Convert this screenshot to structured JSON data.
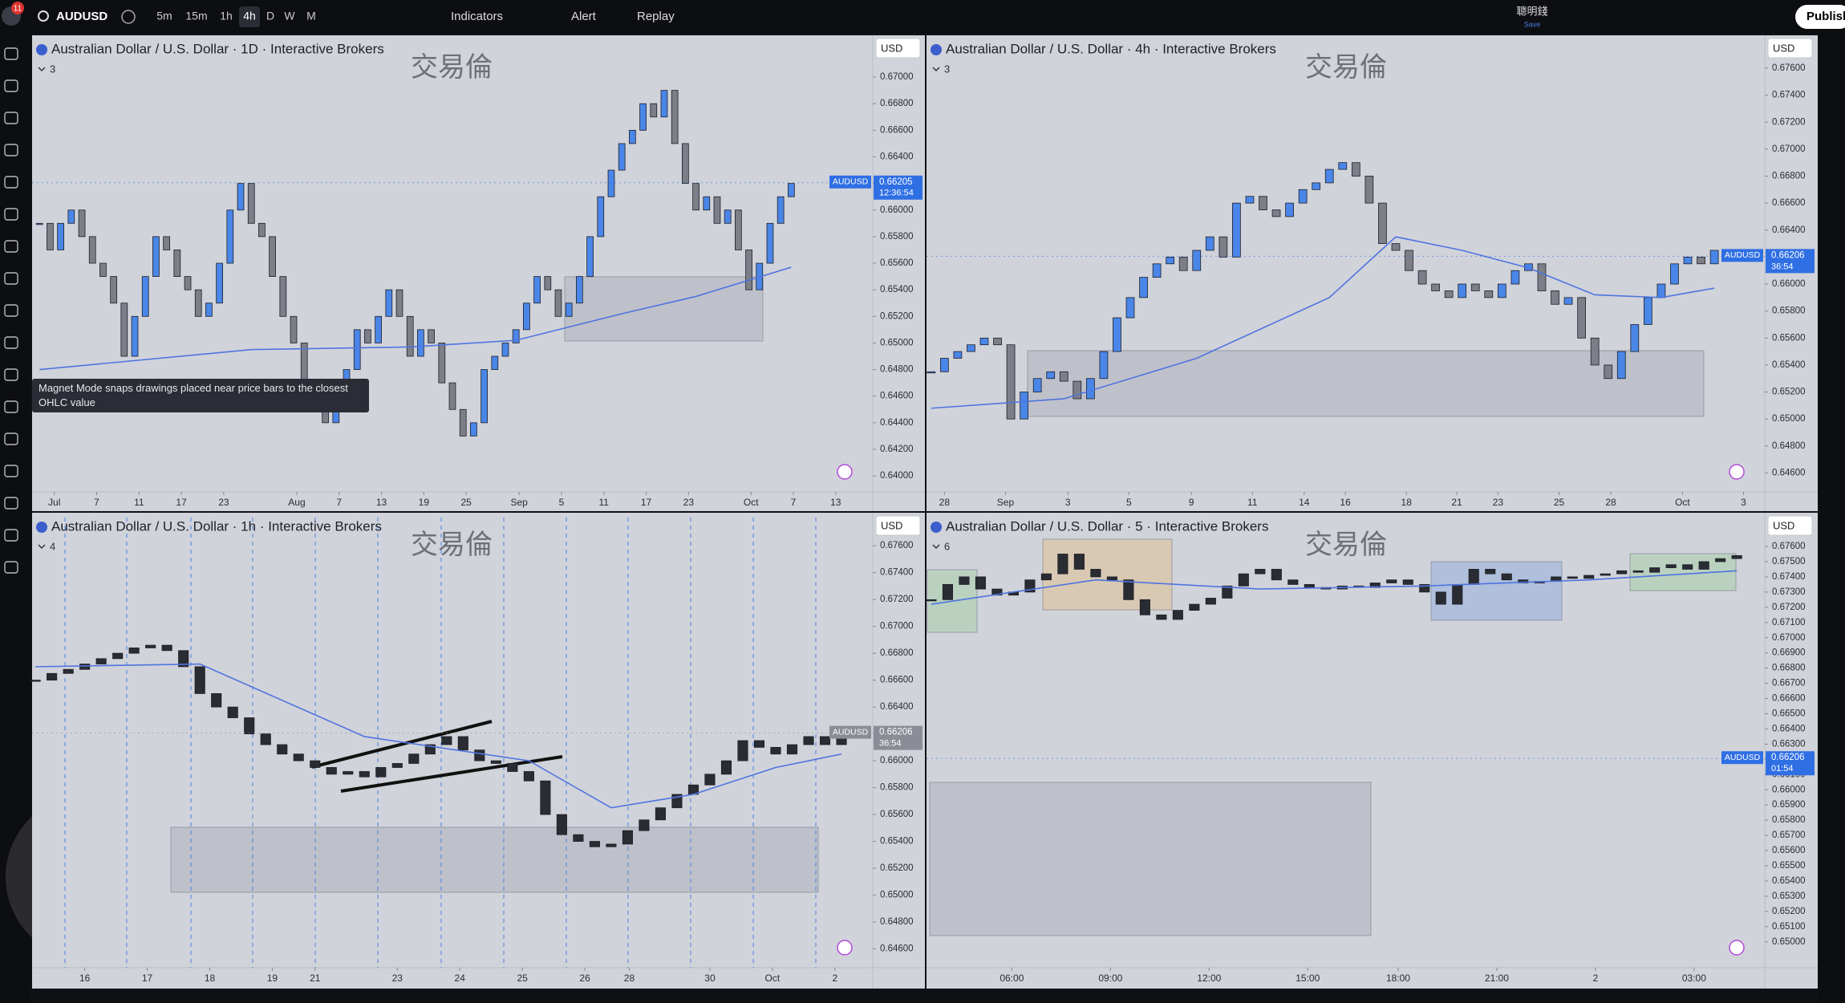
{
  "toolbar": {
    "badge": "11",
    "symbol": "AUDUSD",
    "intervals": [
      "5m",
      "15m",
      "1h",
      "4h",
      "D",
      "W",
      "M"
    ],
    "indicators": "Indicators",
    "alert": "Alert",
    "replay": "Replay",
    "account": "聰明錢",
    "account_sub": "Save",
    "publish": "Publish"
  },
  "tooltip": "Magnet Mode snaps drawings placed near price bars to the closest OHLC value",
  "panels": [
    {
      "title": "Australian Dollar / U.S. Dollar · 1D · Interactive Brokers",
      "legend_count": "3",
      "currency": "USD",
      "watermark": "交易倫",
      "up_color": "#4a86e8",
      "down_color": "#7c7f88",
      "ma_color": "#4f74e0",
      "ylim": [
        0.6388,
        0.6726
      ],
      "yticks": [
        {
          "value": 0.64,
          "label": "0.64000"
        },
        {
          "value": 0.642,
          "label": "0.64200"
        },
        {
          "value": 0.644,
          "label": "0.64400"
        },
        {
          "value": 0.646,
          "label": "0.64600"
        },
        {
          "value": 0.648,
          "label": "0.64800"
        },
        {
          "value": 0.65,
          "label": "0.65000"
        },
        {
          "value": 0.652,
          "label": "0.65200"
        },
        {
          "value": 0.654,
          "label": "0.65400"
        },
        {
          "value": 0.656,
          "label": "0.65600"
        },
        {
          "value": 0.658,
          "label": "0.65800"
        },
        {
          "value": 0.66,
          "label": "0.66000"
        },
        {
          "value": 0.662,
          "label": "0.66200"
        },
        {
          "value": 0.664,
          "label": "0.66400"
        },
        {
          "value": 0.666,
          "label": "0.66600"
        },
        {
          "value": 0.668,
          "label": "0.66800"
        },
        {
          "value": 0.67,
          "label": "0.67000"
        }
      ],
      "xlim": [
        -0.7,
        78.7
      ],
      "xticks": [
        {
          "value": 1.4,
          "label": "Jul"
        },
        {
          "value": 5.4,
          "label": "7"
        },
        {
          "value": 9.4,
          "label": "11"
        },
        {
          "value": 13.4,
          "label": "17"
        },
        {
          "value": 17.4,
          "label": "23"
        },
        {
          "value": 24.3,
          "label": "Aug"
        },
        {
          "value": 28.3,
          "label": "7"
        },
        {
          "value": 32.3,
          "label": "13"
        },
        {
          "value": 36.3,
          "label": "19"
        },
        {
          "value": 40.3,
          "label": "25"
        },
        {
          "value": 45.3,
          "label": "Sep"
        },
        {
          "value": 49.3,
          "label": "5"
        },
        {
          "value": 53.3,
          "label": "11"
        },
        {
          "value": 57.3,
          "label": "17"
        },
        {
          "value": 61.3,
          "label": "23"
        },
        {
          "value": 67.2,
          "label": "Oct"
        },
        {
          "value": 71.2,
          "label": "7"
        },
        {
          "value": 75.2,
          "label": "13"
        }
      ],
      "candles": [
        0.659,
        0.657,
        0.659,
        0.66,
        0.658,
        0.656,
        0.655,
        0.653,
        0.649,
        0.652,
        0.655,
        0.658,
        0.657,
        0.655,
        0.654,
        0.652,
        0.653,
        0.656,
        0.66,
        0.662,
        0.659,
        0.658,
        0.655,
        0.652,
        0.65,
        0.647,
        0.645,
        0.644,
        0.646,
        0.648,
        0.651,
        0.65,
        0.652,
        0.654,
        0.652,
        0.649,
        0.651,
        0.65,
        0.647,
        0.645,
        0.643,
        0.644,
        0.648,
        0.649,
        0.65,
        0.651,
        0.653,
        0.655,
        0.654,
        0.652,
        0.653,
        0.655,
        0.658,
        0.661,
        0.663,
        0.665,
        0.666,
        0.668,
        0.667,
        0.669,
        0.665,
        0.662,
        0.66,
        0.661,
        0.659,
        0.66,
        0.657,
        0.654,
        0.656,
        0.659,
        0.661,
        0.662
      ],
      "ma": {
        "x": [
          0,
          20,
          35,
          45,
          55,
          62,
          71
        ],
        "values": [
          0.648,
          0.6495,
          0.6497,
          0.6502,
          0.6522,
          0.6535,
          0.6557
        ]
      },
      "price_tag": {
        "symbol": "AUDUSD",
        "price": {
          "value": 0.66205,
          "label": "0.66205"
        },
        "countdown": "12:36:54",
        "color": "#2f6fe4"
      }
    },
    {
      "title": "Australian Dollar / U.S. Dollar · 4h · Interactive Brokers",
      "legend_count": "3",
      "currency": "USD",
      "watermark": "交易倫",
      "up_color": "#4a86e8",
      "down_color": "#7c7f88",
      "ma_color": "#4f74e0",
      "ylim": [
        0.6446,
        0.6779
      ],
      "yticks": [
        {
          "value": 0.646,
          "label": "0.64600"
        },
        {
          "value": 0.648,
          "label": "0.64800"
        },
        {
          "value": 0.65,
          "label": "0.65000"
        },
        {
          "value": 0.652,
          "label": "0.65200"
        },
        {
          "value": 0.654,
          "label": "0.65400"
        },
        {
          "value": 0.656,
          "label": "0.65600"
        },
        {
          "value": 0.658,
          "label": "0.65800"
        },
        {
          "value": 0.66,
          "label": "0.66000"
        },
        {
          "value": 0.662,
          "label": "0.66200"
        },
        {
          "value": 0.664,
          "label": "0.66400"
        },
        {
          "value": 0.666,
          "label": "0.66600"
        },
        {
          "value": 0.668,
          "label": "0.66800"
        },
        {
          "value": 0.67,
          "label": "0.67000"
        },
        {
          "value": 0.672,
          "label": "0.67200"
        },
        {
          "value": 0.674,
          "label": "0.67400"
        },
        {
          "value": 0.676,
          "label": "0.67600"
        }
      ],
      "xlim": [
        -0.35,
        62.8
      ],
      "xticks": [
        {
          "value": 1.0,
          "label": "28"
        },
        {
          "value": 5.6,
          "label": "Sep"
        },
        {
          "value": 10.3,
          "label": "3"
        },
        {
          "value": 14.9,
          "label": "5"
        },
        {
          "value": 19.6,
          "label": "9"
        },
        {
          "value": 24.2,
          "label": "11"
        },
        {
          "value": 28.1,
          "label": "14"
        },
        {
          "value": 31.2,
          "label": "16"
        },
        {
          "value": 35.8,
          "label": "18"
        },
        {
          "value": 39.6,
          "label": "21"
        },
        {
          "value": 42.7,
          "label": "23"
        },
        {
          "value": 47.3,
          "label": "25"
        },
        {
          "value": 51.2,
          "label": "28"
        },
        {
          "value": 56.6,
          "label": "Oct"
        },
        {
          "value": 61.2,
          "label": "3"
        }
      ],
      "candles": [
        0.6535,
        0.6545,
        0.655,
        0.6555,
        0.656,
        0.6555,
        0.65,
        0.652,
        0.653,
        0.6535,
        0.6528,
        0.6515,
        0.653,
        0.655,
        0.6575,
        0.659,
        0.6605,
        0.6615,
        0.662,
        0.661,
        0.6625,
        0.6635,
        0.662,
        0.666,
        0.6665,
        0.6655,
        0.665,
        0.666,
        0.667,
        0.6675,
        0.6685,
        0.669,
        0.668,
        0.666,
        0.663,
        0.6625,
        0.661,
        0.66,
        0.6595,
        0.659,
        0.66,
        0.6595,
        0.659,
        0.66,
        0.661,
        0.6615,
        0.6595,
        0.6585,
        0.659,
        0.656,
        0.654,
        0.653,
        0.655,
        0.657,
        0.659,
        0.66,
        0.6615,
        0.662,
        0.6615,
        0.6625
      ],
      "ma": {
        "x": [
          0,
          10,
          20,
          30,
          35,
          40,
          45,
          50,
          55,
          59
        ],
        "values": [
          0.6508,
          0.6515,
          0.6545,
          0.659,
          0.6635,
          0.6625,
          0.6612,
          0.6592,
          0.659,
          0.6597
        ]
      },
      "price_tag": {
        "symbol": "AUDUSD",
        "price": {
          "value": 0.66206,
          "label": "0.66206"
        },
        "countdown": "36:54",
        "color": "#2f6fe4"
      }
    },
    {
      "title": "Australian Dollar / U.S. Dollar · 1h · Interactive Brokers",
      "legend_count": "4",
      "currency": "USD",
      "watermark": "交易倫",
      "up_color": "#2a2c33",
      "down_color": "#2a2c33",
      "ma_color": "#4f74e0",
      "ylim": [
        0.6446,
        0.6781
      ],
      "yticks": [
        {
          "value": 0.646,
          "label": "0.64600"
        },
        {
          "value": 0.648,
          "label": "0.64800"
        },
        {
          "value": 0.65,
          "label": "0.65000"
        },
        {
          "value": 0.652,
          "label": "0.65200"
        },
        {
          "value": 0.654,
          "label": "0.65400"
        },
        {
          "value": 0.656,
          "label": "0.65600"
        },
        {
          "value": 0.658,
          "label": "0.65800"
        },
        {
          "value": 0.66,
          "label": "0.66000"
        },
        {
          "value": 0.662,
          "label": "0.66200"
        },
        {
          "value": 0.664,
          "label": "0.66400"
        },
        {
          "value": 0.666,
          "label": "0.66600"
        },
        {
          "value": 0.668,
          "label": "0.66800"
        },
        {
          "value": 0.67,
          "label": "0.67000"
        },
        {
          "value": 0.672,
          "label": "0.67200"
        },
        {
          "value": 0.674,
          "label": "0.67400"
        },
        {
          "value": 0.676,
          "label": "0.67600"
        }
      ],
      "xlim": [
        -0.2,
        50.9
      ],
      "xticks": [
        {
          "value": 3.0,
          "label": "16"
        },
        {
          "value": 6.8,
          "label": "17"
        },
        {
          "value": 10.6,
          "label": "18"
        },
        {
          "value": 14.4,
          "label": "19"
        },
        {
          "value": 17.0,
          "label": "21"
        },
        {
          "value": 22.0,
          "label": "23"
        },
        {
          "value": 25.8,
          "label": "24"
        },
        {
          "value": 29.6,
          "label": "25"
        },
        {
          "value": 33.4,
          "label": "26"
        },
        {
          "value": 36.1,
          "label": "28"
        },
        {
          "value": 41.0,
          "label": "30"
        },
        {
          "value": 44.8,
          "label": "Oct"
        },
        {
          "value": 48.6,
          "label": "2"
        }
      ],
      "candles": [
        0.666,
        0.6665,
        0.6668,
        0.6672,
        0.6676,
        0.668,
        0.6684,
        0.6686,
        0.6682,
        0.667,
        0.665,
        0.664,
        0.6632,
        0.662,
        0.6612,
        0.6605,
        0.66,
        0.6595,
        0.659,
        0.6592,
        0.6588,
        0.6595,
        0.6598,
        0.6605,
        0.6612,
        0.6618,
        0.6608,
        0.66,
        0.6598,
        0.6592,
        0.6585,
        0.656,
        0.6545,
        0.654,
        0.6536,
        0.6538,
        0.6548,
        0.6556,
        0.6565,
        0.6575,
        0.6582,
        0.659,
        0.66,
        0.6615,
        0.661,
        0.6605,
        0.6612,
        0.6618,
        0.6612,
        0.6621
      ],
      "ma": {
        "x": [
          0,
          10,
          20,
          30,
          35,
          40,
          45,
          49
        ],
        "values": [
          0.667,
          0.6672,
          0.6618,
          0.66,
          0.6565,
          0.6575,
          0.6595,
          0.6605
        ]
      },
      "price_tag": {
        "symbol": "AUDUSD",
        "price": {
          "value": 0.66206,
          "label": "0.66206"
        },
        "countdown": "36:54",
        "color": "#8a8d96"
      }
    },
    {
      "title": "Australian Dollar / U.S. Dollar · 5 · Interactive Brokers",
      "legend_count": "6",
      "currency": "USD",
      "watermark": "交易倫",
      "up_color": "#2a2c33",
      "down_color": "#2a2c33",
      "ma_color": "#4f74e0",
      "ylim": [
        0.6483,
        0.6779
      ],
      "yticks": [
        {
          "value": 0.65,
          "label": "0.65000"
        },
        {
          "value": 0.651,
          "label": "0.65100"
        },
        {
          "value": 0.652,
          "label": "0.65200"
        },
        {
          "value": 0.653,
          "label": "0.65300"
        },
        {
          "value": 0.654,
          "label": "0.65400"
        },
        {
          "value": 0.655,
          "label": "0.65500"
        },
        {
          "value": 0.656,
          "label": "0.65600"
        },
        {
          "value": 0.657,
          "label": "0.65700"
        },
        {
          "value": 0.658,
          "label": "0.65800"
        },
        {
          "value": 0.659,
          "label": "0.65900"
        },
        {
          "value": 0.66,
          "label": "0.66000"
        },
        {
          "value": 0.661,
          "label": "0.66100"
        },
        {
          "value": 0.662,
          "label": "0.66200"
        },
        {
          "value": 0.663,
          "label": "0.66300"
        },
        {
          "value": 0.664,
          "label": "0.66400"
        },
        {
          "value": 0.665,
          "label": "0.66500"
        },
        {
          "value": 0.666,
          "label": "0.66600"
        },
        {
          "value": 0.667,
          "label": "0.66700"
        },
        {
          "value": 0.668,
          "label": "0.66800"
        },
        {
          "value": 0.669,
          "label": "0.66900"
        },
        {
          "value": 0.67,
          "label": "0.67000"
        },
        {
          "value": 0.671,
          "label": "0.67100"
        },
        {
          "value": 0.672,
          "label": "0.67200"
        },
        {
          "value": 0.673,
          "label": "0.67300"
        },
        {
          "value": 0.674,
          "label": "0.67400"
        },
        {
          "value": 0.675,
          "label": "0.67500"
        },
        {
          "value": 0.676,
          "label": "0.67600"
        }
      ],
      "xlim": [
        -0.29,
        50.7
      ],
      "xticks": [
        {
          "value": 4.9,
          "label": "06:00"
        },
        {
          "value": 10.9,
          "label": "09:00"
        },
        {
          "value": 16.9,
          "label": "12:00"
        },
        {
          "value": 22.9,
          "label": "15:00"
        },
        {
          "value": 28.4,
          "label": "18:00"
        },
        {
          "value": 34.4,
          "label": "21:00"
        },
        {
          "value": 40.4,
          "label": "2"
        },
        {
          "value": 46.4,
          "label": "03:00"
        }
      ],
      "candles": [
        0.6725,
        0.6735,
        0.674,
        0.6732,
        0.6728,
        0.673,
        0.6738,
        0.6742,
        0.6755,
        0.6745,
        0.674,
        0.6738,
        0.6725,
        0.6715,
        0.6712,
        0.6718,
        0.6722,
        0.6726,
        0.6734,
        0.6742,
        0.6745,
        0.6738,
        0.6735,
        0.6733,
        0.6732,
        0.6734,
        0.6733,
        0.6736,
        0.6738,
        0.6735,
        0.673,
        0.6722,
        0.6735,
        0.6745,
        0.6742,
        0.6738,
        0.6736,
        0.6737,
        0.674,
        0.6739,
        0.6741,
        0.6742,
        0.6744,
        0.6743,
        0.6746,
        0.6748,
        0.6745,
        0.675,
        0.6752,
        0.6754
      ],
      "ma": {
        "x": [
          0,
          10,
          20,
          30,
          40,
          49
        ],
        "values": [
          0.6722,
          0.6738,
          0.6732,
          0.6734,
          0.6738,
          0.6744
        ]
      },
      "price_tag": {
        "symbol": "AUDUSD",
        "price": {
          "value": 0.66206,
          "label": "0.66206"
        },
        "countdown": "01:54",
        "color": "#2f6fe4"
      }
    }
  ]
}
